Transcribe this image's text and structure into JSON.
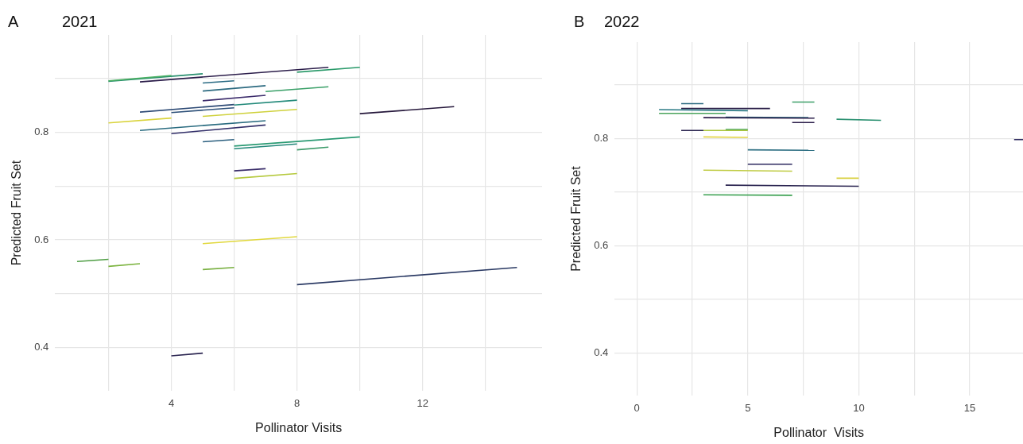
{
  "chart_data": [
    {
      "type": "line",
      "title": "2021",
      "annotations": [
        "A"
      ],
      "xlabel": "Pollinator Visits",
      "ylabel": "Predicted Fruit Set",
      "xlim": [
        0.3,
        15.8
      ],
      "ylim": [
        0.32,
        0.98
      ],
      "xticks": [
        {
          "value": 2,
          "label": null
        },
        4,
        {
          "value": 6,
          "label": null
        },
        8,
        {
          "value": 10,
          "label": null
        },
        12,
        {
          "value": 14,
          "label": null
        }
      ],
      "yticks": [
        {
          "value": 0.4,
          "label": "0.4"
        },
        {
          "value": 0.5,
          "label": null
        },
        {
          "value": 0.6,
          "label": "0.6"
        },
        {
          "value": 0.7,
          "label": null
        },
        {
          "value": 0.8,
          "label": "0.8"
        },
        {
          "value": 0.9,
          "label": null
        }
      ],
      "grid": true,
      "legend": false,
      "marker": "none",
      "line_style": "solid",
      "series": [
        {
          "color": "#4bb062",
          "x": [
            2,
            4
          ],
          "values": [
            0.895,
            0.905
          ]
        },
        {
          "color": "#2a9070",
          "x": [
            2,
            5
          ],
          "values": [
            0.894,
            0.908
          ]
        },
        {
          "color": "#2b1d4a",
          "x": [
            3,
            9
          ],
          "values": [
            0.893,
            0.92
          ]
        },
        {
          "color": "#2a9a6a",
          "x": [
            8,
            10
          ],
          "values": [
            0.911,
            0.92
          ]
        },
        {
          "color": "#2a6b84",
          "x": [
            5,
            6
          ],
          "values": [
            0.891,
            0.895
          ]
        },
        {
          "color": "#2c6a80",
          "x": [
            5,
            7
          ],
          "values": [
            0.876,
            0.886
          ]
        },
        {
          "color": "#3aa068",
          "x": [
            7,
            9
          ],
          "values": [
            0.875,
            0.884
          ]
        },
        {
          "color": "#3b2b6b",
          "x": [
            5,
            7
          ],
          "values": [
            0.858,
            0.868
          ]
        },
        {
          "color": "#2d4a75",
          "x": [
            3,
            6
          ],
          "values": [
            0.837,
            0.851
          ]
        },
        {
          "color": "#238a7a",
          "x": [
            6,
            8
          ],
          "values": [
            0.85,
            0.859
          ]
        },
        {
          "color": "#2f527a",
          "x": [
            4,
            6
          ],
          "values": [
            0.836,
            0.845
          ]
        },
        {
          "color": "#cfd13c",
          "x": [
            5,
            8
          ],
          "values": [
            0.829,
            0.842
          ]
        },
        {
          "color": "#d9d33a",
          "x": [
            2,
            4
          ],
          "values": [
            0.817,
            0.826
          ]
        },
        {
          "color": "#26183c",
          "x": [
            10,
            13
          ],
          "values": [
            0.834,
            0.847
          ]
        },
        {
          "color": "#2a6c80",
          "x": [
            3,
            7
          ],
          "values": [
            0.803,
            0.821
          ]
        },
        {
          "color": "#33306a",
          "x": [
            4,
            7
          ],
          "values": [
            0.797,
            0.813
          ]
        },
        {
          "color": "#2b5f7f",
          "x": [
            5,
            6
          ],
          "values": [
            0.782,
            0.786
          ]
        },
        {
          "color": "#2a9a73",
          "x": [
            6,
            10
          ],
          "values": [
            0.774,
            0.791
          ]
        },
        {
          "color": "#228879",
          "x": [
            6,
            8
          ],
          "values": [
            0.769,
            0.778
          ]
        },
        {
          "color": "#3c9b6a",
          "x": [
            8,
            9
          ],
          "values": [
            0.767,
            0.772
          ]
        },
        {
          "color": "#3a2d6a",
          "x": [
            6,
            7
          ],
          "values": [
            0.728,
            0.732
          ]
        },
        {
          "color": "#b5c93c",
          "x": [
            6,
            8
          ],
          "values": [
            0.714,
            0.723
          ]
        },
        {
          "color": "#e1d83d",
          "x": [
            5,
            8
          ],
          "values": [
            0.593,
            0.606
          ]
        },
        {
          "color": "#4f9e45",
          "x": [
            1,
            2
          ],
          "values": [
            0.56,
            0.564
          ]
        },
        {
          "color": "#7bb33e",
          "x": [
            2,
            3
          ],
          "values": [
            0.551,
            0.556
          ]
        },
        {
          "color": "#78b040",
          "x": [
            5,
            6
          ],
          "values": [
            0.545,
            0.549
          ]
        },
        {
          "color": "#2b3a64",
          "x": [
            8,
            15
          ],
          "values": [
            0.517,
            0.549
          ]
        },
        {
          "color": "#2a2450",
          "x": [
            4,
            5
          ],
          "values": [
            0.385,
            0.39
          ]
        }
      ]
    },
    {
      "type": "line",
      "title": "2022",
      "annotations": [
        "B"
      ],
      "xlabel": "Pollinator  Visits",
      "ylabel": "Predicted Fruit Set",
      "xlim": [
        -1,
        17.4
      ],
      "ylim": [
        0.32,
        0.98
      ],
      "xticks": [
        0,
        {
          "value": 2.5,
          "label": null
        },
        5,
        {
          "value": 7.5,
          "label": null
        },
        10,
        {
          "value": 12.5,
          "label": null
        },
        15
      ],
      "yticks": [
        {
          "value": 0.4,
          "label": "0.4"
        },
        {
          "value": 0.5,
          "label": null
        },
        {
          "value": 0.6,
          "label": "0.6"
        },
        {
          "value": 0.7,
          "label": null
        },
        {
          "value": 0.8,
          "label": "0.8"
        },
        {
          "value": 0.9,
          "label": null
        }
      ],
      "grid": true,
      "legend": false,
      "marker": "none",
      "line_style": "solid",
      "series": [
        {
          "color": "#2b6a80",
          "x": [
            2,
            3
          ],
          "values": [
            0.865,
            0.865
          ]
        },
        {
          "color": "#2a7a85",
          "x": [
            1,
            5
          ],
          "values": [
            0.854,
            0.852
          ]
        },
        {
          "color": "#2a1f48",
          "x": [
            2,
            6
          ],
          "values": [
            0.856,
            0.856
          ]
        },
        {
          "color": "#4aa45c",
          "x": [
            1,
            4
          ],
          "values": [
            0.847,
            0.847
          ]
        },
        {
          "color": "#3fa06a",
          "x": [
            7,
            8
          ],
          "values": [
            0.868,
            0.868
          ]
        },
        {
          "color": "#2b1d4a",
          "x": [
            3,
            8
          ],
          "values": [
            0.839,
            0.838
          ]
        },
        {
          "color": "#2b6f82",
          "x": [
            4,
            8
          ],
          "values": [
            0.84,
            0.839
          ]
        },
        {
          "color": "#2b1d4a",
          "x": [
            7,
            8
          ],
          "values": [
            0.83,
            0.83
          ]
        },
        {
          "color": "#2a9070",
          "x": [
            9,
            11
          ],
          "values": [
            0.836,
            0.834
          ]
        },
        {
          "color": "#2a2450",
          "x": [
            2,
            3
          ],
          "values": [
            0.815,
            0.815
          ]
        },
        {
          "color": "#a9c43a",
          "x": [
            3,
            5
          ],
          "values": [
            0.815,
            0.815
          ]
        },
        {
          "color": "#3aa050",
          "x": [
            4,
            5
          ],
          "values": [
            0.817,
            0.817
          ]
        },
        {
          "color": "#e3d444",
          "x": [
            3,
            5
          ],
          "values": [
            0.803,
            0.802
          ]
        },
        {
          "color": "#2c6e82",
          "x": [
            5,
            8
          ],
          "values": [
            0.779,
            0.778
          ]
        },
        {
          "color": "#2e2a60",
          "x": [
            5,
            7
          ],
          "values": [
            0.752,
            0.752
          ]
        },
        {
          "color": "#c0cc45",
          "x": [
            3,
            7
          ],
          "values": [
            0.741,
            0.739
          ]
        },
        {
          "color": "#d8d03f",
          "x": [
            9,
            10
          ],
          "values": [
            0.726,
            0.726
          ]
        },
        {
          "color": "#2a2450",
          "x": [
            4,
            10
          ],
          "values": [
            0.713,
            0.711
          ]
        },
        {
          "color": "#3aa050",
          "x": [
            3,
            7
          ],
          "values": [
            0.695,
            0.694
          ]
        },
        {
          "color": "#2e2a60",
          "x": [
            17,
            17.4
          ],
          "values": [
            0.798,
            0.798
          ]
        }
      ]
    }
  ]
}
